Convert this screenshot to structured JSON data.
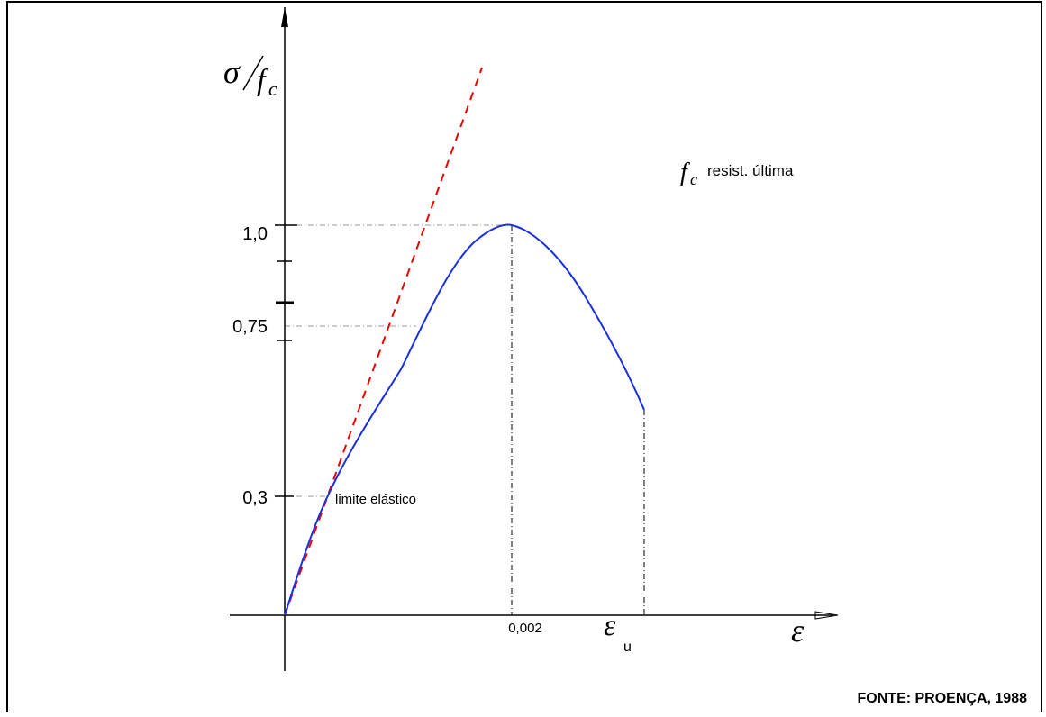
{
  "y_axis_label": {
    "numerator": "σ",
    "denominator": "f",
    "subscript": "c"
  },
  "note": {
    "symbol": "f",
    "subscript": "c",
    "text": "resist. última"
  },
  "y_ticks": [
    "1,0",
    "0,75",
    "0,3"
  ],
  "x_ticks": {
    "peak": "0,002",
    "ultimate": {
      "symbol": "ε",
      "subscript": "u"
    }
  },
  "x_axis_label": "ε",
  "annotation": "limite elástico",
  "source": "FONTE: PROENÇA, 1988"
}
